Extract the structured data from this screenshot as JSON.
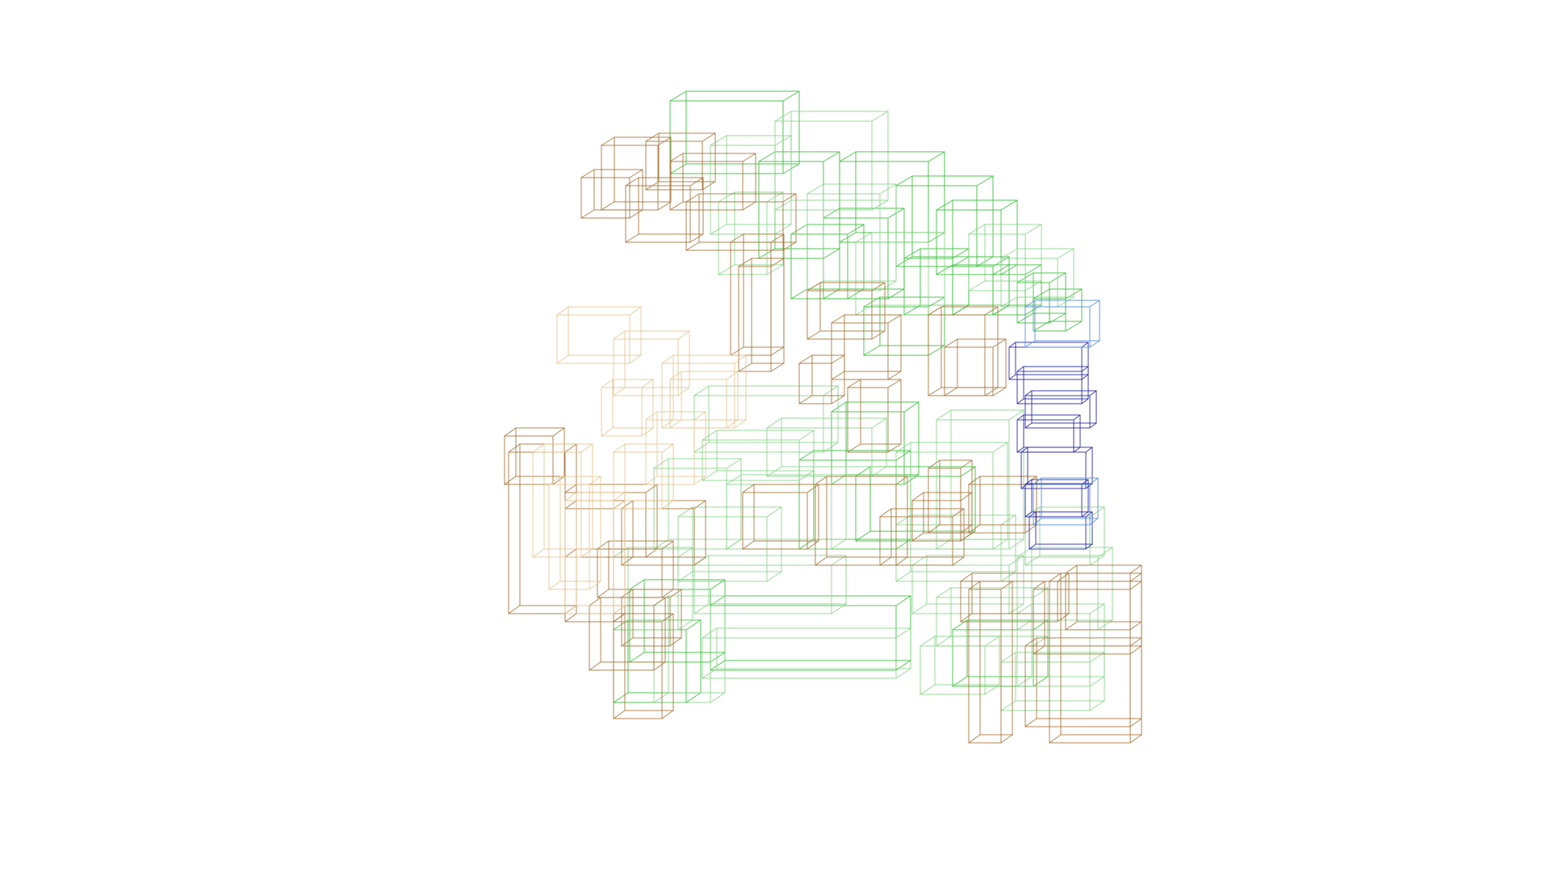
{
  "scene": {
    "type": "wireframe-box-cluster",
    "background": "#ffffff",
    "palette": {
      "green": "#3fbf3f",
      "light_green": "#7fd07f",
      "brown": "#a8773d",
      "tan": "#e6c48f",
      "blue": "#2a2aa8",
      "light_blue": "#5a8fd8"
    }
  }
}
